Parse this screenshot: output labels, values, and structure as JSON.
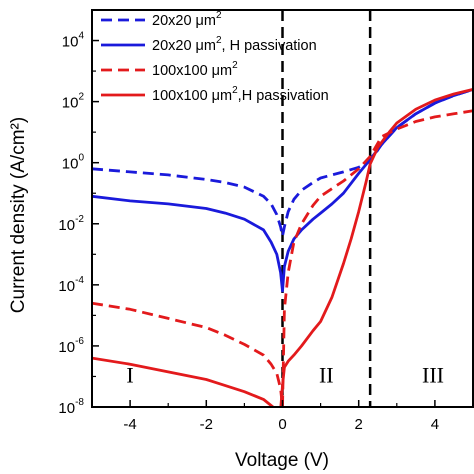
{
  "chart_data": {
    "type": "line",
    "title": "",
    "xlabel": "Voltage (V)",
    "ylabel": "Current density (A/cm²)",
    "xlim": [
      -5,
      5
    ],
    "ylim_log10": [
      -8,
      5
    ],
    "yscale": "log",
    "grid": false,
    "legend_position": "top-left",
    "x_ticks": [
      -4,
      -2,
      0,
      2,
      4
    ],
    "x_tick_labels": [
      "-4",
      "-2",
      "0",
      "2",
      "4"
    ],
    "y_ticks_exponent": [
      -8,
      -6,
      -4,
      -2,
      0,
      2,
      4
    ],
    "y_tick_base": "10",
    "vlines": [
      0,
      2.3
    ],
    "regions": [
      {
        "label": "I",
        "x": -4,
        "y_log10": -7.2
      },
      {
        "label": "II",
        "x": 1.15,
        "y_log10": -7.2
      },
      {
        "label": "III",
        "x": 3.95,
        "y_log10": -7.2
      }
    ],
    "series": [
      {
        "name": "20x20 μm",
        "name_sup": "2",
        "name_suffix": "",
        "color": "#1a1adb",
        "dash": true,
        "x": [
          -5,
          -4,
          -3,
          -2,
          -1.5,
          -1,
          -0.5,
          -0.3,
          -0.15,
          -0.05,
          0,
          0.05,
          0.15,
          0.3,
          0.5,
          0.8,
          1.0,
          1.3,
          1.6,
          2.0,
          2.3,
          2.6,
          3.0,
          3.5,
          4.0,
          4.5,
          5.0
        ],
        "y_log10": [
          -0.2,
          -0.3,
          -0.4,
          -0.55,
          -0.65,
          -0.8,
          -1.1,
          -1.35,
          -1.7,
          -2.1,
          -2.4,
          -2.1,
          -1.6,
          -1.2,
          -0.9,
          -0.65,
          -0.5,
          -0.4,
          -0.3,
          -0.15,
          0.05,
          0.6,
          1.15,
          1.6,
          1.95,
          2.2,
          2.4
        ]
      },
      {
        "name": "20x20 μm",
        "name_sup": "2",
        "name_suffix": ", H passivation",
        "color": "#1a1adb",
        "dash": false,
        "x": [
          -5,
          -4,
          -3,
          -2,
          -1.5,
          -1,
          -0.5,
          -0.3,
          -0.15,
          -0.05,
          0,
          0.05,
          0.15,
          0.3,
          0.5,
          0.8,
          1.0,
          1.3,
          1.6,
          2.0,
          2.3,
          2.6,
          3.0,
          3.5,
          4.0,
          4.5,
          5.0
        ],
        "y_log10": [
          -1.1,
          -1.25,
          -1.35,
          -1.5,
          -1.65,
          -1.85,
          -2.2,
          -2.6,
          -3.0,
          -3.6,
          -4.2,
          -3.4,
          -2.9,
          -2.5,
          -2.2,
          -1.85,
          -1.65,
          -1.35,
          -1.0,
          -0.35,
          0.1,
          0.6,
          1.15,
          1.6,
          1.95,
          2.2,
          2.4
        ]
      },
      {
        "name": "100x100 μm",
        "name_sup": "2",
        "name_suffix": "",
        "color": "#e31a1c",
        "dash": true,
        "x": [
          -5,
          -4,
          -3,
          -2,
          -1.5,
          -1,
          -0.5,
          -0.3,
          -0.15,
          -0.05,
          0,
          0.05,
          0.15,
          0.3,
          0.5,
          0.8,
          1.0,
          1.3,
          1.6,
          2.0,
          2.3,
          2.6,
          3.0,
          3.5,
          4.0,
          4.5,
          5.0
        ],
        "y_log10": [
          -4.6,
          -4.8,
          -5.1,
          -5.4,
          -5.65,
          -5.95,
          -6.3,
          -6.6,
          -6.9,
          -7.4,
          -8.0,
          -4.8,
          -3.6,
          -2.6,
          -2.0,
          -1.4,
          -1.1,
          -0.85,
          -0.6,
          -0.2,
          0.2,
          0.85,
          1.1,
          1.35,
          1.5,
          1.6,
          1.7
        ]
      },
      {
        "name": "100x100 μm",
        "name_sup": "2",
        "name_suffix": ",H passivation",
        "color": "#e31a1c",
        "dash": false,
        "x": [
          -5,
          -4,
          -3,
          -2,
          -1.5,
          -1,
          -0.5,
          -0.3,
          -0.15,
          -0.05,
          0,
          0.05,
          0.15,
          0.3,
          0.5,
          0.8,
          1.0,
          1.3,
          1.6,
          1.8,
          2.0,
          2.1,
          2.2,
          2.3,
          2.5,
          2.8,
          3.0,
          3.5,
          4.0,
          4.5,
          5.0
        ],
        "y_log10": [
          -6.4,
          -6.6,
          -6.85,
          -7.1,
          -7.3,
          -7.5,
          -7.75,
          -7.95,
          -8.1,
          -8.1,
          -7.3,
          -6.7,
          -6.5,
          -6.3,
          -6.0,
          -5.5,
          -5.2,
          -4.4,
          -3.3,
          -2.5,
          -1.6,
          -1.1,
          -0.6,
          -0.05,
          0.5,
          1.0,
          1.3,
          1.75,
          2.05,
          2.25,
          2.4
        ]
      }
    ]
  }
}
